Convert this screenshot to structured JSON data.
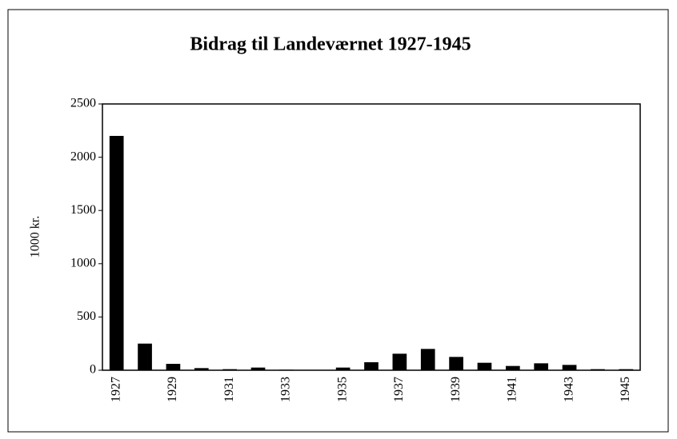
{
  "chart_data": {
    "type": "bar",
    "title": "Bidrag til Landeværnet 1927-1945",
    "y_label": "1000 kr.",
    "categories": [
      "1927",
      null,
      "1929",
      null,
      "1931",
      null,
      "1933",
      null,
      "1935",
      null,
      "1937",
      null,
      "1939",
      null,
      "1941",
      null,
      "1943",
      null,
      "1945"
    ],
    "values": [
      2200,
      250,
      60,
      20,
      10,
      25,
      5,
      0,
      25,
      75,
      155,
      200,
      125,
      70,
      40,
      65,
      50,
      10,
      10
    ],
    "color": "#000000",
    "ylim": [
      0,
      2500
    ],
    "yticks": [
      0,
      500,
      1000,
      1500,
      2000,
      2500
    ],
    "grid": false
  }
}
